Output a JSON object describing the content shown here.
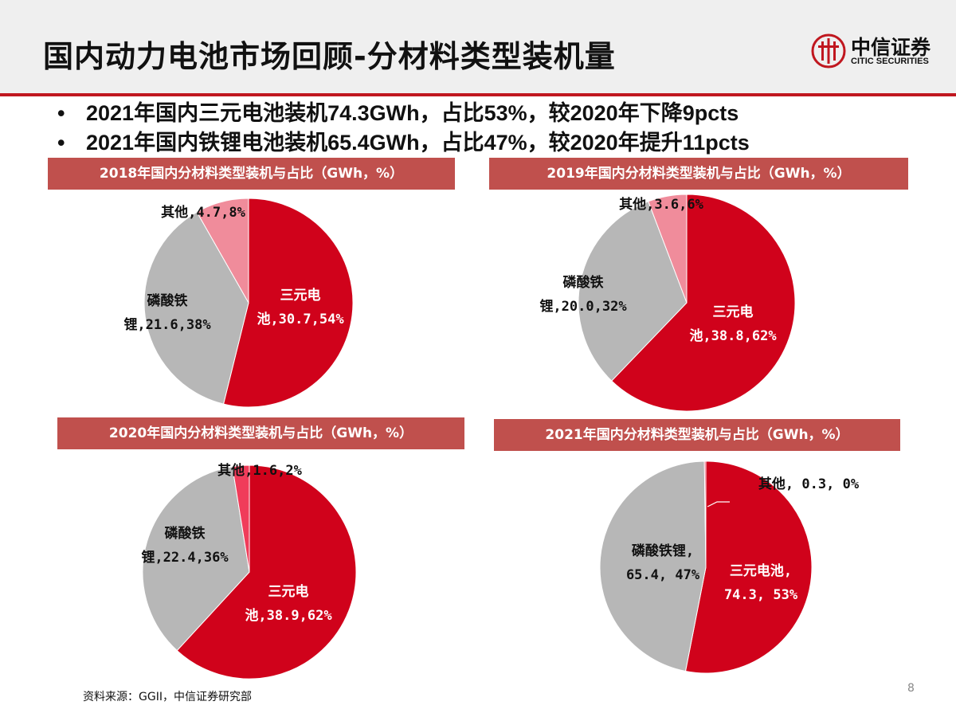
{
  "header": {
    "title": "国内动力电池市场回顾-分材料类型装机量",
    "logo": {
      "name": "中信证券",
      "subtitle": "CITIC SECURITIES",
      "icon": "citic-logo-icon"
    }
  },
  "bullets": [
    "2021年国内三元电池装机74.3GWh，占比53%，较2020年下降9pcts",
    "2021年国内铁锂电池装机65.4GWh，占比47%，较2020年提升11pcts"
  ],
  "bullet_marker": "•",
  "colors": {
    "ternary": "#d0021b",
    "lfp": "#b7b7b7",
    "other": "#f08c9b",
    "other_2020": "#f03c5a",
    "panel": "#c0504d",
    "accent": "#c0171f"
  },
  "footnote": "资料来源：GGII，中信证券研究部",
  "page_number": "8",
  "chart_data": [
    {
      "type": "pie",
      "title": "2018年国内分材料类型装机与占比（GWh，%）",
      "slices": [
        {
          "name": "三元电池",
          "value": 30.7,
          "percent": 54,
          "label_lines": [
            "三元电",
            "池,30.7,54%"
          ]
        },
        {
          "name": "磷酸铁锂",
          "value": 21.6,
          "percent": 38,
          "label_lines": [
            "磷酸铁",
            "锂,21.6,38%"
          ]
        },
        {
          "name": "其他",
          "value": 4.7,
          "percent": 8,
          "label_lines": [
            "其他,4.7,8%"
          ]
        }
      ]
    },
    {
      "type": "pie",
      "title": "2019年国内分材料类型装机与占比（GWh，%）",
      "slices": [
        {
          "name": "三元电池",
          "value": 38.8,
          "percent": 62,
          "label_lines": [
            "三元电",
            "池,38.8,62%"
          ]
        },
        {
          "name": "磷酸铁锂",
          "value": 20.0,
          "percent": 32,
          "label_lines": [
            "磷酸铁",
            "锂,20.0,32%"
          ]
        },
        {
          "name": "其他",
          "value": 3.6,
          "percent": 6,
          "label_lines": [
            "其他,3.6,6%"
          ]
        }
      ]
    },
    {
      "type": "pie",
      "title": "2020年国内分材料类型装机与占比（GWh，%）",
      "slices": [
        {
          "name": "三元电池",
          "value": 38.9,
          "percent": 62,
          "label_lines": [
            "三元电",
            "池,38.9,62%"
          ]
        },
        {
          "name": "磷酸铁锂",
          "value": 22.4,
          "percent": 36,
          "label_lines": [
            "磷酸铁",
            "锂,22.4,36%"
          ]
        },
        {
          "name": "其他",
          "value": 1.6,
          "percent": 2,
          "label_lines": [
            "其他,1.6,2%"
          ]
        }
      ]
    },
    {
      "type": "pie",
      "title": "2021年国内分材料类型装机与占比（GWh，%）",
      "slices": [
        {
          "name": "三元电池",
          "value": 74.3,
          "percent": 53,
          "label_lines": [
            "三元电池,",
            "74.3, 53%"
          ]
        },
        {
          "name": "磷酸铁锂",
          "value": 65.4,
          "percent": 47,
          "label_lines": [
            "磷酸铁锂,",
            "65.4, 47%"
          ]
        },
        {
          "name": "其他",
          "value": 0.3,
          "percent": 0,
          "label_lines": [
            "其他, 0.3, 0%"
          ]
        }
      ]
    }
  ]
}
